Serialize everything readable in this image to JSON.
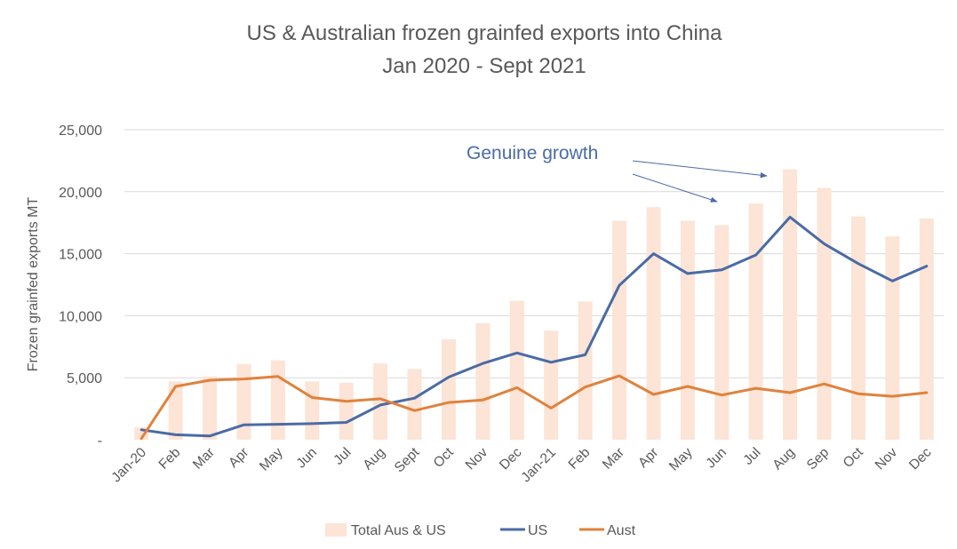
{
  "chart_data": {
    "type": "bar+line",
    "title": "US & Australian frozen grainfed exports into China",
    "subtitle": "Jan 2020 - Sept 2021",
    "ylabel": "Frozen grainfed exports MT",
    "xlabel": "",
    "ylim": [
      0,
      25000
    ],
    "yticks": [
      0,
      5000,
      10000,
      15000,
      20000,
      25000
    ],
    "ytick_labels": [
      "-",
      "5,000",
      "10,000",
      "15,000",
      "20,000",
      "25,000"
    ],
    "grid": true,
    "legend_position": "bottom",
    "categories": [
      "Jan-20",
      "Feb",
      "Mar",
      "Apr",
      "May",
      "Jun",
      "Jul",
      "Aug",
      "Sept",
      "Oct",
      "Nov",
      "Dec",
      "Jan-21",
      "Feb",
      "Mar",
      "Apr",
      "May",
      "Jun",
      "Jul",
      "Aug",
      "Sep",
      "Oct",
      "Nov",
      "Dec"
    ],
    "series": [
      {
        "name": "Total Aus & US",
        "kind": "bar",
        "color": "#FCE4D6",
        "values": [
          1000,
          4700,
          5100,
          6100,
          6400,
          4700,
          4600,
          6150,
          5700,
          8100,
          9400,
          11200,
          8800,
          11150,
          17650,
          18750,
          17650,
          17300,
          19050,
          21800,
          20300,
          18000,
          16400,
          17850
        ]
      },
      {
        "name": "US",
        "kind": "line",
        "color": "#4A6BA6",
        "values": [
          800,
          400,
          300,
          1200,
          1250,
          1300,
          1400,
          2800,
          3350,
          5050,
          6150,
          7000,
          6250,
          6850,
          12450,
          15000,
          13400,
          13700,
          14900,
          17950,
          15800,
          14200,
          12800,
          14000
        ]
      },
      {
        "name": "Aust",
        "kind": "line",
        "color": "#E0823C",
        "values": [
          100,
          4300,
          4800,
          4900,
          5100,
          3400,
          3100,
          3300,
          2350,
          3000,
          3200,
          4200,
          2550,
          4250,
          5150,
          3650,
          4300,
          3600,
          4150,
          3800,
          4500,
          3700,
          3500,
          3800
        ]
      }
    ],
    "annotations": [
      {
        "text": "Genuine growth",
        "color": "#4A6BA6",
        "arrows_to_categories": [
          "Jun",
          "Aug"
        ]
      }
    ]
  }
}
